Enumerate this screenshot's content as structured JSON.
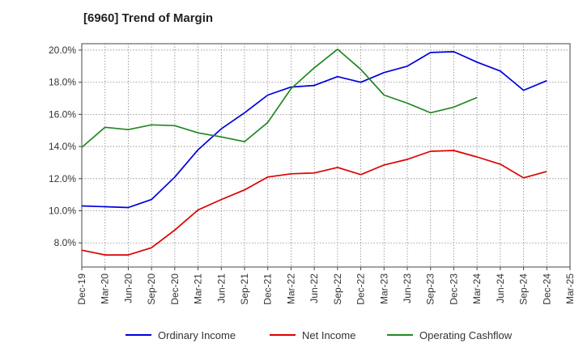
{
  "chart_data": {
    "type": "line",
    "title": "[6960]  Trend of Margin",
    "xlabel": "",
    "ylabel": "",
    "ylim": [
      6.5,
      20.4
    ],
    "y_ticks": [
      8.0,
      10.0,
      12.0,
      14.0,
      16.0,
      18.0,
      20.0
    ],
    "y_tick_labels": [
      "8.0%",
      "10.0%",
      "12.0%",
      "14.0%",
      "16.0%",
      "18.0%",
      "20.0%"
    ],
    "categories": [
      "Dec-19",
      "Mar-20",
      "Jun-20",
      "Sep-20",
      "Dec-20",
      "Mar-21",
      "Jun-21",
      "Sep-21",
      "Dec-21",
      "Mar-22",
      "Jun-22",
      "Sep-22",
      "Dec-22",
      "Mar-23",
      "Jun-23",
      "Sep-23",
      "Dec-23",
      "Mar-24",
      "Jun-24",
      "Sep-24",
      "Dec-24",
      "Mar-25"
    ],
    "grid": true,
    "legend_position": "bottom",
    "series": [
      {
        "name": "Ordinary Income",
        "color": "#0000dd",
        "values": [
          10.3,
          10.25,
          10.2,
          10.7,
          12.1,
          13.8,
          15.1,
          16.1,
          17.2,
          17.7,
          17.8,
          18.35,
          18.0,
          18.6,
          19.0,
          19.85,
          19.9,
          19.25,
          18.7,
          17.5,
          18.1,
          null
        ]
      },
      {
        "name": "Net Income",
        "color": "#dd0000",
        "values": [
          7.55,
          7.25,
          7.25,
          7.7,
          8.8,
          10.05,
          10.7,
          11.3,
          12.1,
          12.3,
          12.35,
          12.7,
          12.25,
          12.85,
          13.2,
          13.7,
          13.75,
          13.35,
          12.9,
          12.05,
          12.45,
          null
        ]
      },
      {
        "name": "Operating Cashflow",
        "color": "#228822",
        "values": [
          13.95,
          15.2,
          15.05,
          15.35,
          15.3,
          14.85,
          14.6,
          14.3,
          15.5,
          17.6,
          18.9,
          20.05,
          18.8,
          17.2,
          16.7,
          16.1,
          16.45,
          17.05,
          null,
          null,
          null,
          null
        ]
      }
    ]
  }
}
